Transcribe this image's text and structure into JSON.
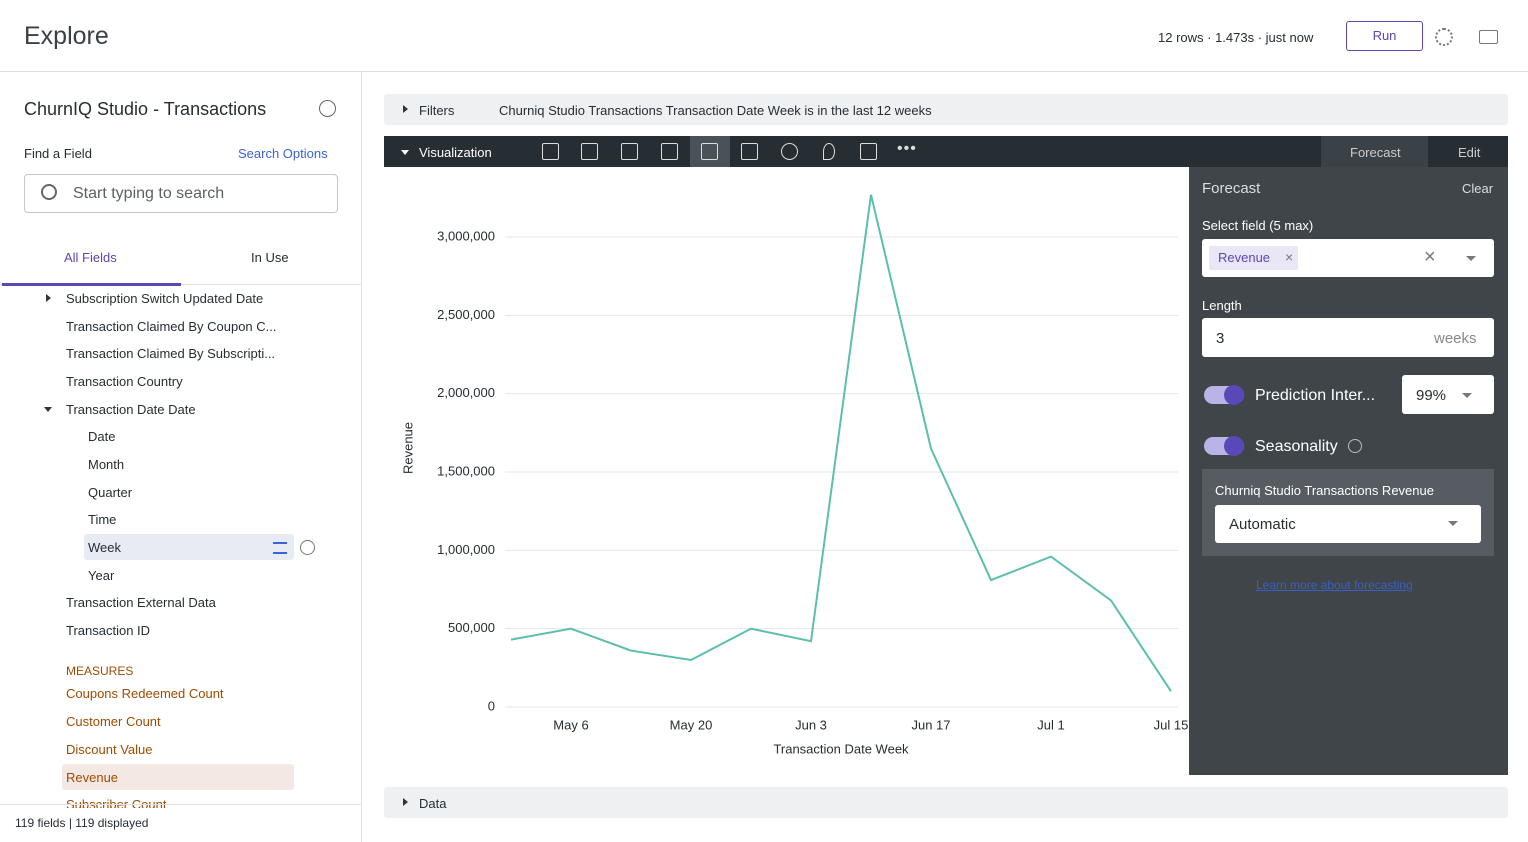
{
  "header": {
    "title": "Explore",
    "status": "12 rows · 1.473s · just now",
    "run": "Run"
  },
  "sidebar": {
    "title": "ChurnIQ Studio - Transactions",
    "find_label": "Find a Field",
    "search_options": "Search Options",
    "search_placeholder": "Start typing to search",
    "tabs": [
      "All Fields",
      "In Use"
    ],
    "fields": [
      "Subscription Switch Updated Date",
      "Transaction Claimed By Coupon C...",
      "Transaction Claimed By Subscripti...",
      "Transaction Country",
      "Transaction Date Date",
      "Date",
      "Month",
      "Quarter",
      "Time",
      "Week",
      "Year",
      "Transaction External Data",
      "Transaction ID"
    ],
    "measures_label": "MEASURES",
    "measures": [
      "Coupons Redeemed Count",
      "Customer Count",
      "Discount Value",
      "Revenue",
      "Subscriber Count"
    ],
    "footer": "119 fields | 119 displayed"
  },
  "filters": {
    "label": "Filters",
    "text": "Churniq Studio Transactions Transaction Date Week is in the last 12 weeks"
  },
  "visualization": {
    "label": "Visualization",
    "forecast": "Forecast",
    "edit": "Edit"
  },
  "chart_data": {
    "type": "line",
    "xlabel": "Transaction Date Week",
    "ylabel": "Revenue",
    "categories": [
      null,
      "May 6",
      null,
      "May 20",
      null,
      "Jun 3",
      null,
      "Jun 17",
      null,
      "Jul 1",
      null,
      "Jul 15"
    ],
    "values": [
      430000,
      500000,
      360000,
      300000,
      500000,
      420000,
      3270000,
      1650000,
      810000,
      960000,
      680000,
      100000
    ],
    "color": "#5bbfad",
    "ylim": [
      0,
      3300000
    ],
    "yticks": [
      0,
      {
        "value": 500000,
        "label": "500,000"
      },
      {
        "value": 1000000,
        "label": "1,000,000"
      },
      {
        "value": 1500000,
        "label": "1,500,000"
      },
      {
        "value": 2000000,
        "label": "2,000,000"
      },
      {
        "value": 2500000,
        "label": "2,500,000"
      },
      {
        "value": 3000000,
        "label": "3,000,000"
      }
    ],
    "grid": true
  },
  "forecast_panel": {
    "title": "Forecast",
    "clear": "Clear",
    "select_label": "Select field (5 max)",
    "chip": "Revenue",
    "length_label": "Length",
    "length_value": "3",
    "length_unit": "weeks",
    "prediction": "Prediction Inter...",
    "prediction_value": "99%",
    "seasonality": "Seasonality",
    "group_label": "Churniq Studio Transactions Revenue",
    "group_value": "Automatic",
    "link": "Learn more about forecasting"
  },
  "data_bar": {
    "label": "Data"
  }
}
